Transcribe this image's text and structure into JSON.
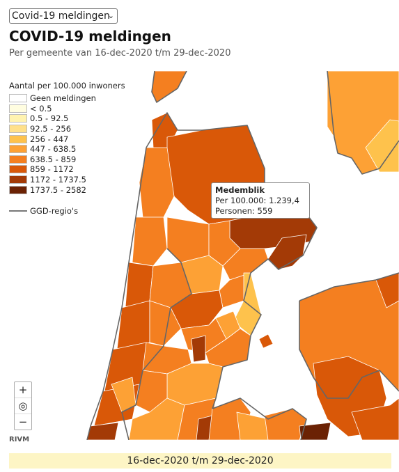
{
  "select": {
    "value": "Covid-19 meldingen",
    "arrow_icon": "chevron-down-icon"
  },
  "title": "COVID-19 meldingen",
  "subtitle": "Per gemeente van 16-dec-2020 t/m 29-dec-2020",
  "legend": {
    "title": "Aantal per 100.000 inwoners",
    "items": [
      {
        "label": "Geen meldingen",
        "color": "#ffffff"
      },
      {
        "label": "< 0.5",
        "color": "#fffde0"
      },
      {
        "label": "0.5 - 92.5",
        "color": "#fff3b0"
      },
      {
        "label": "92.5 - 256",
        "color": "#ffe08a"
      },
      {
        "label": "256 - 447",
        "color": "#fec24c"
      },
      {
        "label": "447 - 638.5",
        "color": "#fda135"
      },
      {
        "label": "638.5 - 859",
        "color": "#f47f20"
      },
      {
        "label": "859 - 1172",
        "color": "#d95808"
      },
      {
        "label": "1172 - 1737.5",
        "color": "#a33a06"
      },
      {
        "label": "1737.5 - 2582",
        "color": "#6b2204"
      }
    ],
    "ggd_label": "GGD-regio's"
  },
  "tooltip": {
    "name": "Medemblik",
    "per100k": "Per 100.000: 1.239,4",
    "persons": "Personen: 559"
  },
  "zoom": {
    "in": "+",
    "reset": "◎",
    "out": "−"
  },
  "credit": "RIVM",
  "date_range": "16-dec-2020 t/m 29-dec-2020"
}
